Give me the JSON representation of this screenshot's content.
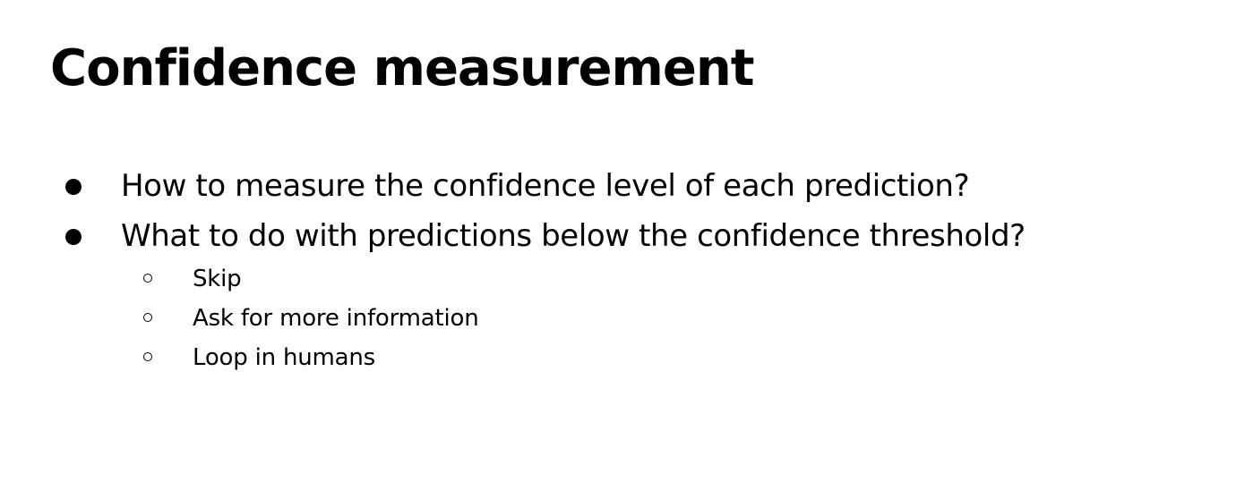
{
  "slide": {
    "title": "Confidence measurement",
    "bullets": [
      "How to measure the confidence level of each prediction?",
      "What to do with predictions below the confidence threshold?"
    ],
    "sub_bullets": [
      "Skip",
      "Ask for more information",
      "Loop in humans"
    ]
  }
}
